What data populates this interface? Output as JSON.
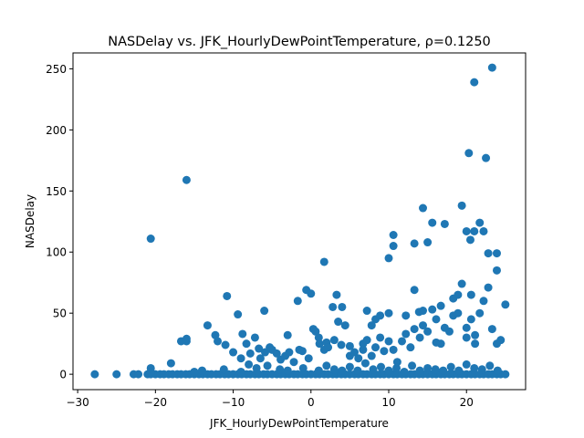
{
  "chart_data": {
    "type": "scatter",
    "title": "NASDelay vs. JFK_HourlyDewPointTemperature, ρ=0.1250",
    "xlabel": "JFK_HourlyDewPointTemperature",
    "ylabel": "NASDelay",
    "xlim": [
      -30.6,
      27.6
    ],
    "ylim": [
      -12.6,
      263.0
    ],
    "xticks": [
      -30,
      -20,
      -10,
      0,
      10,
      20
    ],
    "yticks": [
      0,
      50,
      100,
      150,
      200,
      250
    ],
    "grid": false,
    "marker_color": "#1f77b4",
    "points": [
      [
        -27.8,
        0
      ],
      [
        -25,
        0
      ],
      [
        -22.8,
        0
      ],
      [
        -22.2,
        0
      ],
      [
        -21,
        0
      ],
      [
        -20.6,
        0
      ],
      [
        -20,
        0
      ],
      [
        -19.4,
        0
      ],
      [
        -18.9,
        0
      ],
      [
        -18.3,
        0
      ],
      [
        -17.8,
        0
      ],
      [
        -17.2,
        0
      ],
      [
        -16.7,
        0
      ],
      [
        -16.1,
        0
      ],
      [
        -15.6,
        0
      ],
      [
        -15,
        0
      ],
      [
        -14.4,
        0
      ],
      [
        -13.9,
        0
      ],
      [
        -13.3,
        0
      ],
      [
        -12.8,
        0
      ],
      [
        -12.2,
        0
      ],
      [
        -11.7,
        0
      ],
      [
        -11.1,
        0
      ],
      [
        -10.6,
        0
      ],
      [
        -10,
        0
      ],
      [
        -9.4,
        0
      ],
      [
        -8.9,
        0
      ],
      [
        -8.3,
        0
      ],
      [
        -7.8,
        0
      ],
      [
        -7.2,
        0
      ],
      [
        -6.7,
        0
      ],
      [
        -6.1,
        0
      ],
      [
        -5.6,
        0
      ],
      [
        -5,
        0
      ],
      [
        -4.4,
        0
      ],
      [
        -3.9,
        0
      ],
      [
        -3.3,
        0
      ],
      [
        -2.8,
        0
      ],
      [
        -2.2,
        0
      ],
      [
        -1.7,
        0
      ],
      [
        -1.1,
        0
      ],
      [
        -0.6,
        0
      ],
      [
        0,
        0
      ],
      [
        0.6,
        0
      ],
      [
        1.1,
        0
      ],
      [
        1.7,
        0
      ],
      [
        2.2,
        0
      ],
      [
        2.8,
        0
      ],
      [
        3.3,
        0
      ],
      [
        3.9,
        0
      ],
      [
        4.4,
        0
      ],
      [
        5,
        0
      ],
      [
        5.6,
        0
      ],
      [
        6.1,
        0
      ],
      [
        6.7,
        0
      ],
      [
        7.2,
        0
      ],
      [
        7.8,
        0
      ],
      [
        8.3,
        0
      ],
      [
        8.9,
        0
      ],
      [
        9.4,
        0
      ],
      [
        10,
        0
      ],
      [
        10.6,
        0
      ],
      [
        11.1,
        0
      ],
      [
        11.7,
        0
      ],
      [
        12.2,
        0
      ],
      [
        12.8,
        0
      ],
      [
        13.3,
        0
      ],
      [
        13.9,
        0
      ],
      [
        14.4,
        0
      ],
      [
        15,
        0
      ],
      [
        15.6,
        0
      ],
      [
        16.1,
        0
      ],
      [
        16.7,
        0
      ],
      [
        17.2,
        0
      ],
      [
        17.8,
        0
      ],
      [
        18.3,
        0
      ],
      [
        18.9,
        0
      ],
      [
        19.4,
        0
      ],
      [
        20,
        0
      ],
      [
        20.6,
        0
      ],
      [
        21.1,
        0
      ],
      [
        21.7,
        0
      ],
      [
        22.2,
        0
      ],
      [
        22.8,
        0
      ],
      [
        23.3,
        0
      ],
      [
        23.9,
        0
      ],
      [
        24.4,
        0
      ],
      [
        25,
        0
      ],
      [
        -20.6,
        5
      ],
      [
        -20.6,
        2
      ],
      [
        -18,
        9
      ],
      [
        -15,
        2
      ],
      [
        -14,
        3
      ],
      [
        -11.2,
        4
      ],
      [
        -9,
        2
      ],
      [
        -8,
        8
      ],
      [
        -7,
        5
      ],
      [
        -5.6,
        7
      ],
      [
        -4,
        4
      ],
      [
        -3,
        3
      ],
      [
        -1,
        5
      ],
      [
        1,
        3
      ],
      [
        2,
        7
      ],
      [
        3,
        4
      ],
      [
        4,
        3
      ],
      [
        5,
        6
      ],
      [
        6,
        3
      ],
      [
        7,
        9
      ],
      [
        8,
        4
      ],
      [
        9,
        6
      ],
      [
        10,
        3
      ],
      [
        11,
        5
      ],
      [
        12,
        2
      ],
      [
        13,
        7
      ],
      [
        14,
        3
      ],
      [
        15,
        5
      ],
      [
        16,
        4
      ],
      [
        17,
        3
      ],
      [
        18,
        6
      ],
      [
        19,
        3
      ],
      [
        20,
        8
      ],
      [
        21,
        5
      ],
      [
        22,
        4
      ],
      [
        23,
        7
      ],
      [
        24,
        3
      ],
      [
        -20.6,
        111
      ],
      [
        -16,
        159
      ],
      [
        -16.7,
        27
      ],
      [
        -16,
        27
      ],
      [
        -16,
        29
      ],
      [
        -13.3,
        40
      ],
      [
        -12.3,
        32
      ],
      [
        -12,
        27
      ],
      [
        -11,
        24
      ],
      [
        -10.8,
        64
      ],
      [
        -10,
        18
      ],
      [
        -9.4,
        49
      ],
      [
        -9,
        13
      ],
      [
        -8.8,
        33
      ],
      [
        -8.3,
        25
      ],
      [
        -7.8,
        17
      ],
      [
        -7.2,
        30
      ],
      [
        -6.7,
        21
      ],
      [
        -6.5,
        13
      ],
      [
        -6,
        52
      ],
      [
        -5.9,
        18
      ],
      [
        -5.3,
        22
      ],
      [
        -5,
        20
      ],
      [
        -4.4,
        17
      ],
      [
        -3.9,
        12
      ],
      [
        -3.3,
        15
      ],
      [
        -3,
        32
      ],
      [
        -2.8,
        18
      ],
      [
        -2.2,
        10
      ],
      [
        -1.7,
        60
      ],
      [
        -1.5,
        20
      ],
      [
        -1.1,
        19
      ],
      [
        -0.6,
        69
      ],
      [
        -0.3,
        13
      ],
      [
        0,
        66
      ],
      [
        0.3,
        37
      ],
      [
        0.6,
        35
      ],
      [
        1,
        30
      ],
      [
        1.1,
        25
      ],
      [
        1.7,
        92
      ],
      [
        1.7,
        20
      ],
      [
        2,
        26
      ],
      [
        2.2,
        22
      ],
      [
        2.8,
        55
      ],
      [
        3,
        28
      ],
      [
        3.3,
        65
      ],
      [
        3.5,
        43
      ],
      [
        3.9,
        24
      ],
      [
        4,
        55
      ],
      [
        4.4,
        40
      ],
      [
        5,
        15
      ],
      [
        5,
        23
      ],
      [
        5.6,
        18
      ],
      [
        6.1,
        13
      ],
      [
        6.7,
        20
      ],
      [
        6.7,
        25
      ],
      [
        7.2,
        52
      ],
      [
        7.2,
        28
      ],
      [
        7.8,
        15
      ],
      [
        7.8,
        40
      ],
      [
        8.3,
        45
      ],
      [
        8.3,
        22
      ],
      [
        8.9,
        48
      ],
      [
        8.9,
        30
      ],
      [
        9.4,
        19
      ],
      [
        10,
        95
      ],
      [
        10,
        50
      ],
      [
        10,
        27
      ],
      [
        10.6,
        114
      ],
      [
        10.6,
        105
      ],
      [
        10.6,
        20
      ],
      [
        11.1,
        10
      ],
      [
        11.7,
        27
      ],
      [
        12.2,
        48
      ],
      [
        12.2,
        33
      ],
      [
        12.8,
        22
      ],
      [
        13.3,
        107
      ],
      [
        13.3,
        69
      ],
      [
        13.3,
        37
      ],
      [
        13.9,
        51
      ],
      [
        14,
        30
      ],
      [
        14.4,
        136
      ],
      [
        14.4,
        52
      ],
      [
        14.4,
        40
      ],
      [
        15,
        108
      ],
      [
        15,
        35
      ],
      [
        15.6,
        124
      ],
      [
        15.6,
        53
      ],
      [
        16.1,
        45
      ],
      [
        16.1,
        26
      ],
      [
        16.7,
        25
      ],
      [
        16.7,
        56
      ],
      [
        17.2,
        123
      ],
      [
        17.2,
        38
      ],
      [
        17.8,
        35
      ],
      [
        18.3,
        62
      ],
      [
        18.3,
        48
      ],
      [
        18.9,
        65
      ],
      [
        18.9,
        50
      ],
      [
        19.4,
        74
      ],
      [
        19.4,
        138
      ],
      [
        20,
        117
      ],
      [
        20,
        38
      ],
      [
        20,
        30
      ],
      [
        20.3,
        181
      ],
      [
        20.5,
        110
      ],
      [
        20.6,
        65
      ],
      [
        20.6,
        45
      ],
      [
        21,
        239
      ],
      [
        21,
        117
      ],
      [
        21.1,
        32
      ],
      [
        21.1,
        25
      ],
      [
        21.7,
        124
      ],
      [
        21.7,
        50
      ],
      [
        22.2,
        117
      ],
      [
        22.2,
        60
      ],
      [
        22.5,
        177
      ],
      [
        22.8,
        99
      ],
      [
        22.8,
        71
      ],
      [
        23.3,
        251
      ],
      [
        23.3,
        37
      ],
      [
        23.9,
        99
      ],
      [
        23.9,
        85
      ],
      [
        23.9,
        25
      ],
      [
        24.4,
        28
      ],
      [
        25,
        57
      ]
    ]
  }
}
